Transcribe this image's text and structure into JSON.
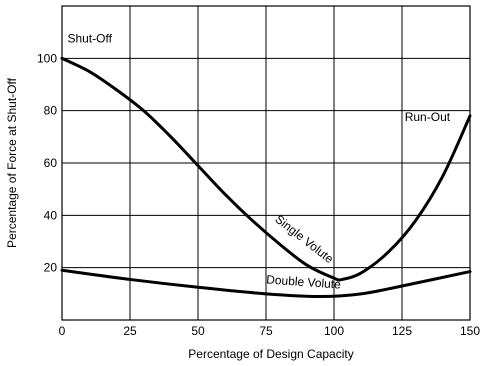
{
  "chart_data": {
    "type": "line",
    "title": "",
    "xlabel": "Percentage of Design Capacity",
    "ylabel": "Percentage of Force at Shut-Off",
    "xlim": [
      0,
      150
    ],
    "ylim": [
      0,
      120
    ],
    "xticks": [
      "0",
      "25",
      "50",
      "75",
      "100",
      "125",
      "150"
    ],
    "yticks": [
      "20",
      "40",
      "60",
      "80",
      "100"
    ],
    "grid": true,
    "series": [
      {
        "name": "Single Volute",
        "x": [
          0,
          10,
          20,
          30,
          40,
          50,
          60,
          70,
          80,
          90,
          100,
          103,
          110,
          120,
          130,
          140,
          150
        ],
        "y": [
          100,
          95,
          88,
          80,
          70,
          59,
          48,
          38,
          29,
          21,
          16,
          15.5,
          18,
          26,
          38,
          55,
          78
        ]
      },
      {
        "name": "Double Volute",
        "x": [
          0,
          25,
          50,
          75,
          95,
          110,
          125,
          150
        ],
        "y": [
          19,
          15.5,
          12.5,
          10,
          9,
          10,
          13,
          18.5
        ]
      }
    ],
    "annotations": [
      {
        "text": "Shut-Off",
        "x": 2,
        "y": 106
      },
      {
        "text": "Run-Out",
        "x": 126,
        "y": 76
      },
      {
        "text": "Single Volute",
        "x": 78,
        "y": 38
      },
      {
        "text": "Double Volute",
        "x": 75,
        "y": 14
      }
    ]
  }
}
